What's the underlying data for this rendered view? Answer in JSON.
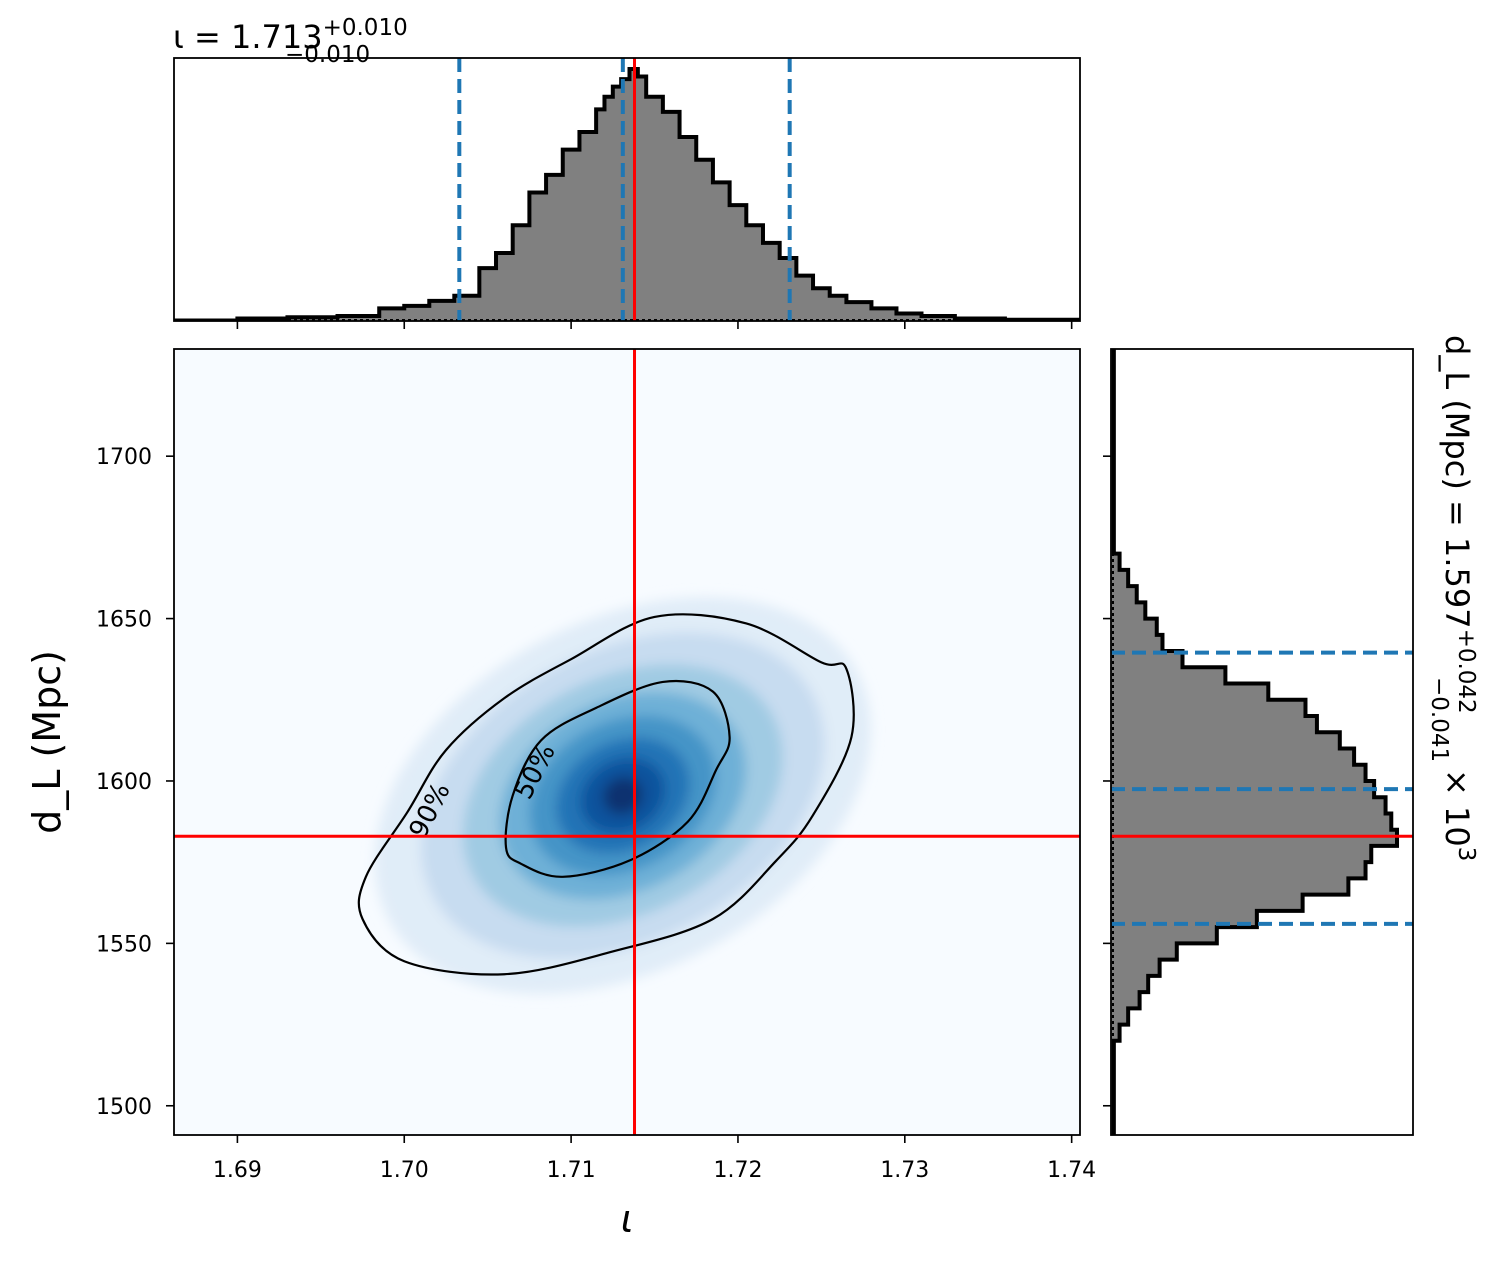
{
  "chart_data": {
    "type": "corner",
    "panels": {
      "top_marginal": {
        "type": "step_histogram",
        "title": {
          "base": "ι = 1.713",
          "sup": "+0.010",
          "sub": "−0.010"
        },
        "parameter": "ι",
        "xlim": [
          1.6862,
          1.7405
        ],
        "bin_edges": [
          1.686,
          1.69,
          1.693,
          1.696,
          1.6985,
          1.7,
          1.7015,
          1.703,
          1.7045,
          1.7055,
          1.7065,
          1.7075,
          1.7085,
          1.7095,
          1.7105,
          1.7115,
          1.712,
          1.7125,
          1.713,
          1.7135,
          1.714,
          1.7145,
          1.7155,
          1.7165,
          1.7175,
          1.7185,
          1.7195,
          1.7205,
          1.7215,
          1.7225,
          1.7235,
          1.7245,
          1.7255,
          1.7265,
          1.728,
          1.7295,
          1.731,
          1.733,
          1.736,
          1.7405
        ],
        "density": [
          0.002,
          0.01,
          0.015,
          0.02,
          0.05,
          0.06,
          0.08,
          0.1,
          0.21,
          0.27,
          0.38,
          0.51,
          0.58,
          0.68,
          0.75,
          0.84,
          0.89,
          0.93,
          0.96,
          1.0,
          0.97,
          0.89,
          0.83,
          0.73,
          0.64,
          0.55,
          0.46,
          0.38,
          0.31,
          0.25,
          0.18,
          0.13,
          0.1,
          0.075,
          0.05,
          0.03,
          0.02,
          0.01,
          0.005
        ],
        "quantile_lines": [
          1.7033,
          1.7131,
          1.7231
        ],
        "truth": 1.7138,
        "colors": {
          "fill": "#808080",
          "edge": "#000000",
          "quantile": "#1f77b4",
          "truth": "#ff0000"
        }
      },
      "right_marginal": {
        "type": "step_histogram",
        "orientation": "horizontal",
        "title": {
          "base": "d_L (Mpc) = 1.597",
          "sup": "+0.042",
          "sub": "−0.041",
          "suffix": "× 10",
          "suffix_sup": "3"
        },
        "parameter": "d_L",
        "ylim": [
          1491,
          1733
        ],
        "bin_edges": [
          1491,
          1520,
          1525,
          1530,
          1535,
          1540,
          1545,
          1550,
          1555,
          1560,
          1565,
          1570,
          1575,
          1580,
          1585,
          1590,
          1595,
          1600,
          1605,
          1610,
          1615,
          1620,
          1625,
          1630,
          1635,
          1640,
          1645,
          1650,
          1655,
          1660,
          1665,
          1670,
          1733
        ],
        "density": [
          0.01,
          0.03,
          0.06,
          0.1,
          0.13,
          0.17,
          0.23,
          0.37,
          0.51,
          0.67,
          0.83,
          0.89,
          0.91,
          1.0,
          0.98,
          0.96,
          0.92,
          0.89,
          0.85,
          0.8,
          0.72,
          0.68,
          0.55,
          0.4,
          0.25,
          0.18,
          0.16,
          0.12,
          0.09,
          0.06,
          0.03,
          0.01
        ],
        "quantile_lines": [
          1556,
          1597.5,
          1639.5
        ],
        "truth": 1583,
        "colors": {
          "fill": "#808080",
          "edge": "#000000",
          "quantile": "#1f77b4",
          "truth": "#ff0000"
        }
      },
      "joint": {
        "type": "density_2d",
        "colormap": "Blues",
        "xlim": [
          1.6862,
          1.7405
        ],
        "ylim": [
          1491,
          1733
        ],
        "xlabel": "ι",
        "ylabel": "d_L (Mpc)",
        "xticks": [
          "1.69",
          "1.70",
          "1.71",
          "1.72",
          "1.73",
          "1.74"
        ],
        "yticks": [
          "1500",
          "1550",
          "1600",
          "1650",
          "1700"
        ],
        "density_peak": [
          1.7131,
          1.5955
        ],
        "contours": [
          {
            "label": "50%",
            "points": [
              [
                1.7065,
                1.5955
              ],
              [
                1.7082,
                1.6125
              ],
              [
                1.7115,
                1.6225
              ],
              [
                1.7155,
                1.6305
              ],
              [
                1.7185,
                1.6275
              ],
              [
                1.7195,
                1.6135
              ],
              [
                1.7187,
                1.6035
              ],
              [
                1.717,
                1.5875
              ],
              [
                1.7135,
                1.5755
              ],
              [
                1.7095,
                1.5705
              ],
              [
                1.707,
                1.5745
              ],
              [
                1.7061,
                1.5795
              ]
            ]
          },
          {
            "label": "90%",
            "points": [
              [
                1.7002,
                1.5905
              ],
              [
                1.7025,
                1.6095
              ],
              [
                1.706,
                1.6255
              ],
              [
                1.71,
                1.6375
              ],
              [
                1.715,
                1.6505
              ],
              [
                1.7205,
                1.6485
              ],
              [
                1.725,
                1.6365
              ],
              [
                1.7265,
                1.6345
              ],
              [
                1.7268,
                1.6135
              ],
              [
                1.7245,
                1.5895
              ],
              [
                1.7223,
                1.5755
              ],
              [
                1.7185,
                1.5575
              ],
              [
                1.7125,
                1.5475
              ],
              [
                1.706,
                1.5405
              ],
              [
                1.7,
                1.5445
              ],
              [
                1.6975,
                1.5575
              ],
              [
                1.6977,
                1.5705
              ]
            ]
          }
        ],
        "truth": [
          1.7138,
          1583
        ],
        "colors": {
          "contour": "#000000",
          "truth": "#ff0000"
        }
      }
    }
  }
}
